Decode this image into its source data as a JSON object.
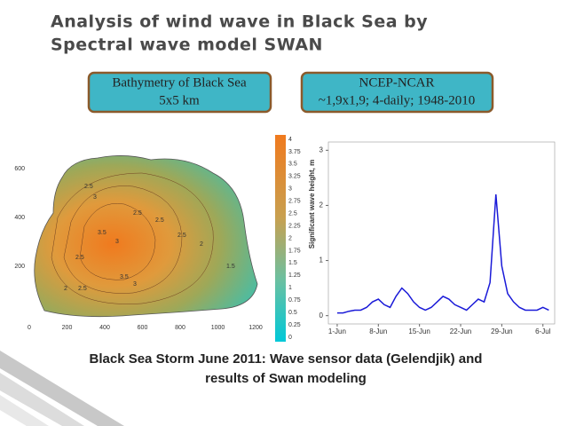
{
  "header": {
    "title_lines": [
      "Analysis of wind wave in Black Sea by",
      "Spectral wave model SWAN"
    ]
  },
  "boxes": [
    {
      "lines": [
        "Bathymetry of Black Sea",
        "5x5 km"
      ]
    },
    {
      "lines": [
        "NCEP-NCAR",
        "~1,9x1,9; 4-daily; 1948-2010"
      ]
    }
  ],
  "map": {
    "x_labels": [
      "0",
      "200",
      "400",
      "600",
      "800",
      "1000",
      "1200"
    ],
    "y_labels": [
      "600",
      "400",
      "200"
    ],
    "colorbar_labels": [
      "4",
      "3.75",
      "3.5",
      "3.25",
      "3",
      "2.75",
      "2.5",
      "2.25",
      "2",
      "1.75",
      "1.5",
      "1.25",
      "1",
      "0.75",
      "0.5",
      "0.25",
      "0"
    ],
    "contour_labels": [
      "2.5",
      "3",
      "2.5",
      "2.5",
      "3.5",
      "3",
      "2.5",
      "2",
      "2.5",
      "3.5",
      "3",
      "2.5",
      "2",
      "1.5"
    ]
  },
  "chart_data": {
    "type": "line",
    "y_label": "Significant wave height, m",
    "color": "#1a1ad8",
    "x": [
      0,
      1,
      2,
      3,
      4,
      5,
      6,
      7,
      8,
      9,
      10,
      11,
      12,
      13,
      14,
      15,
      16,
      17,
      18,
      19,
      20,
      21,
      22,
      23,
      24,
      25,
      26,
      27,
      28,
      29,
      30,
      31,
      32,
      33,
      34,
      35,
      36
    ],
    "values": [
      0.05,
      0.05,
      0.08,
      0.1,
      0.1,
      0.15,
      0.25,
      0.3,
      0.2,
      0.15,
      0.35,
      0.5,
      0.4,
      0.25,
      0.15,
      0.1,
      0.15,
      0.25,
      0.35,
      0.3,
      0.2,
      0.15,
      0.1,
      0.2,
      0.3,
      0.25,
      0.6,
      2.2,
      0.9,
      0.4,
      0.25,
      0.15,
      0.1,
      0.1,
      0.1,
      0.15,
      0.1
    ],
    "xlim": [
      -1.5,
      37
    ],
    "ylim": [
      -0.15,
      3.15
    ],
    "xticks": [
      {
        "value": 0,
        "label": "1-Jun"
      },
      {
        "value": 7,
        "label": "8-Jun"
      },
      {
        "value": 14,
        "label": "15-Jun"
      },
      {
        "value": 21,
        "label": "22-Jun"
      },
      {
        "value": 28,
        "label": "29-Jun"
      },
      {
        "value": 35,
        "label": "6-Jul"
      }
    ],
    "yticks": [
      0,
      1,
      2,
      3
    ]
  },
  "caption": {
    "lines": [
      "Black Sea  Storm June 2011: Wave sensor data (Gelendjik)  and",
      "results of Swan modeling"
    ]
  }
}
